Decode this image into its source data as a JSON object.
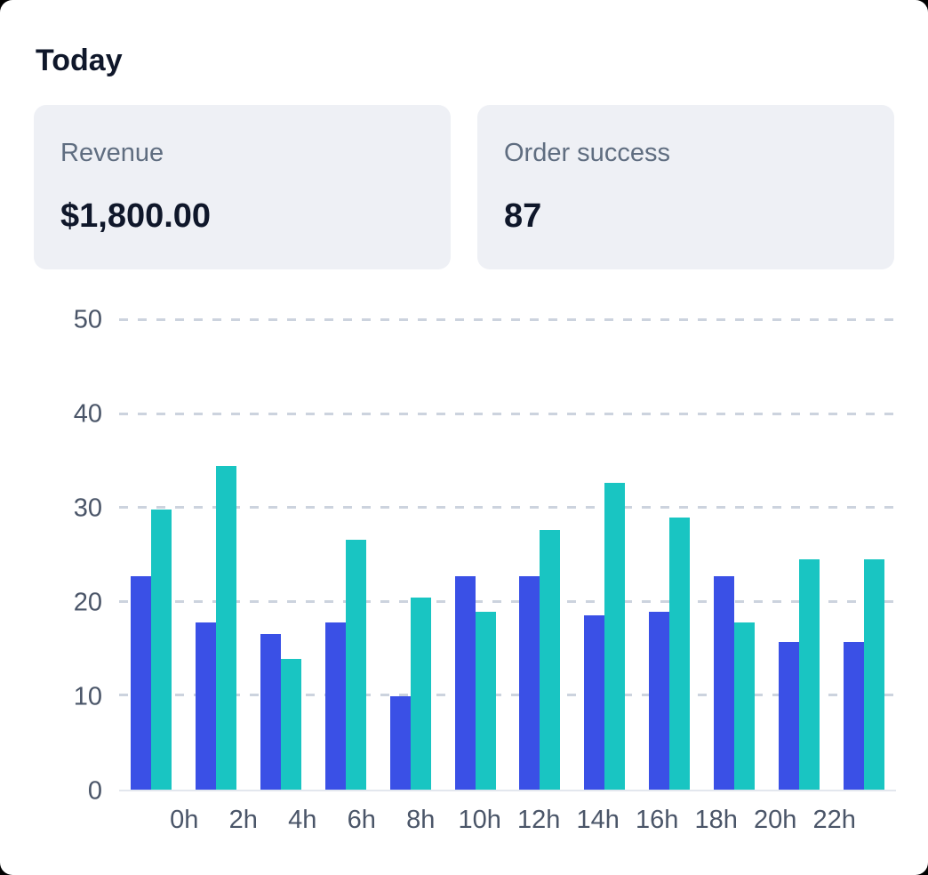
{
  "page": {
    "title": "Today",
    "canvas_color": "#000000",
    "surface_color": "#ffffff",
    "card_color": "#eef0f5"
  },
  "stats": [
    {
      "label": "Revenue",
      "value": "$1,800.00"
    },
    {
      "label": "Order success",
      "value": "87"
    }
  ],
  "chart_data": {
    "type": "bar",
    "title": "",
    "xlabel": "",
    "ylabel": "",
    "categories": [
      "0h",
      "2h",
      "4h",
      "6h",
      "8h",
      "10h",
      "12h",
      "14h",
      "16h",
      "18h",
      "20h",
      "22h"
    ],
    "series": [
      {
        "name": "blue",
        "color": "#3a50e6",
        "values": [
          22.7,
          17.8,
          16.6,
          17.8,
          9.9,
          22.7,
          22.7,
          18.6,
          18.9,
          22.7,
          15.7,
          15.7
        ]
      },
      {
        "name": "teal",
        "color": "#19c5c2",
        "values": [
          29.8,
          34.5,
          13.9,
          26.6,
          20.5,
          18.9,
          27.7,
          32.7,
          29.0,
          17.8,
          24.5,
          24.5
        ]
      }
    ],
    "y_ticks": [
      0,
      10,
      20,
      30,
      40,
      50
    ],
    "ylim": [
      0,
      50
    ],
    "grid": "horizontal-dashed",
    "legend": "none"
  }
}
